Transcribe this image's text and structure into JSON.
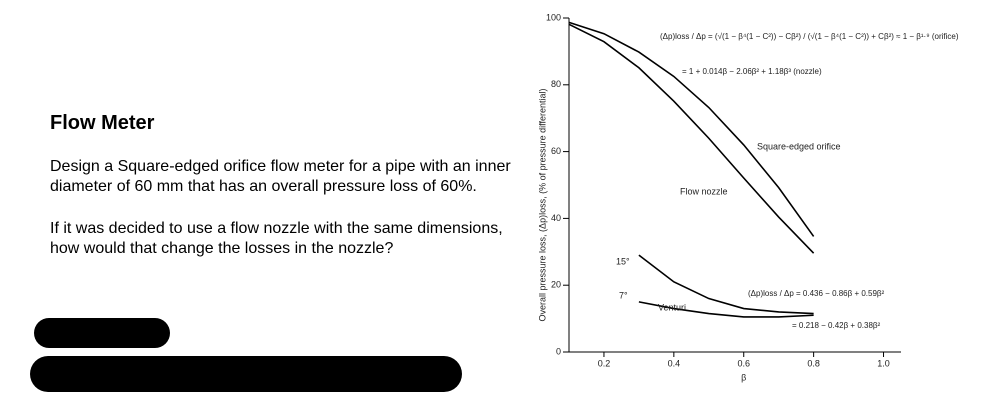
{
  "document": {
    "title": "Flow Meter",
    "paragraphs": [
      "Design a Square-edged orifice flow meter for a pipe with an inner diameter of 60 mm that has an overall pressure loss of 60%.",
      "If it was decided to use a flow nozzle with the same dimensions, how would that change the losses in the nozzle?"
    ]
  },
  "chart_data": {
    "type": "line",
    "x_label": "β",
    "y_label": "Overall pressure loss, (Δp)loss, (% of pressure differential)",
    "x": [
      0.1,
      0.2,
      0.3,
      0.4,
      0.5,
      0.6,
      0.7,
      0.8
    ],
    "series": [
      {
        "name": "Square-edged orifice",
        "color": "#000000",
        "values": [
          98.7,
          95.3,
          89.8,
          82.5,
          73.2,
          62,
          49.2,
          34.6
        ]
      },
      {
        "name": "Flow nozzle",
        "color": "#000000",
        "values": [
          98.1,
          92.9,
          85.1,
          75.1,
          64,
          52.1,
          40.4,
          29.6
        ]
      },
      {
        "name": "15°",
        "color": "#000000",
        "values": [
          null,
          null,
          29,
          21,
          16,
          13,
          12,
          11.5
        ]
      },
      {
        "name": "7°",
        "color": "#000000",
        "values": [
          null,
          null,
          15,
          13,
          11.5,
          10.5,
          10.5,
          11
        ]
      }
    ],
    "annotations": [
      "Venturi",
      "(Δp)loss / Δp = (√(1 − β⁴(1 − C²)) − Cβ²) / (√(1 − β⁴(1 − C²)) + Cβ²) ≈ 1 − β¹·⁹ (orifice)",
      "= 1 + 0.014β − 2.06β² + 1.18β³ (nozzle)",
      "(Δp)loss / Δp = 0.436 − 0.86β + 0.59β²",
      "= 0.218 − 0.42β + 0.38β²"
    ],
    "xlim": [
      0.1,
      1.05
    ],
    "ylim": [
      0,
      100
    ],
    "xticks": [
      0.2,
      0.4,
      0.6,
      0.8,
      {
        "value": 1,
        "label": "1.0"
      }
    ],
    "yticks": [
      0,
      20,
      40,
      60,
      80,
      100
    ]
  }
}
